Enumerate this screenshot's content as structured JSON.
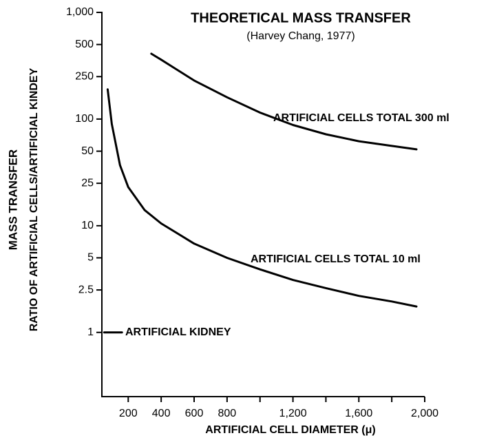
{
  "chart_data": {
    "type": "line",
    "title": "THEORETICAL MASS TRANSFER",
    "subtitle": "(Harvey Chang, 1977)",
    "xlabel": "ARTIFICIAL CELL DIAMETER (μ)",
    "ylabel": [
      "MASS TRANSFER",
      "RATIO OF ARTIFICIAL CELLS/ARTIFICIAL KINDEY"
    ],
    "ylog": true,
    "xlim": [
      40,
      2000
    ],
    "ylim": [
      0.25,
      1000
    ],
    "xticks": [
      200,
      400,
      600,
      800,
      {
        "value": 1200,
        "label": "1,200"
      },
      {
        "value": 1600,
        "label": "1,600"
      },
      {
        "value": 2000,
        "label": "2,000"
      }
    ],
    "minor_xticks": [
      1000,
      1400,
      1800
    ],
    "yticks": [
      {
        "value": 1000,
        "label": "1,000"
      },
      500,
      250,
      100,
      50,
      25,
      10,
      5,
      2.5,
      1
    ],
    "series": [
      {
        "name": "ARTIFICIAL CELLS TOTAL 300 ml",
        "color": "#000000",
        "x": [
          340,
          400,
          600,
          800,
          1000,
          1200,
          1400,
          1600,
          1800,
          1950
        ],
        "values": [
          410,
          360,
          230,
          160,
          115,
          88,
          72,
          62,
          56,
          52
        ]
      },
      {
        "name": "ARTIFICIAL CELLS TOTAL 10 ml",
        "color": "#000000",
        "x": [
          75,
          100,
          150,
          200,
          300,
          400,
          600,
          800,
          1000,
          1200,
          1400,
          1600,
          1800,
          1950
        ],
        "values": [
          190,
          90,
          37,
          23,
          14,
          10.5,
          6.8,
          5,
          3.9,
          3.1,
          2.6,
          2.2,
          1.95,
          1.75
        ]
      },
      {
        "name": "ARTIFICIAL KIDNEY",
        "color": "#000000",
        "x": [
          54,
          162
        ],
        "values": [
          1,
          1
        ]
      }
    ]
  }
}
